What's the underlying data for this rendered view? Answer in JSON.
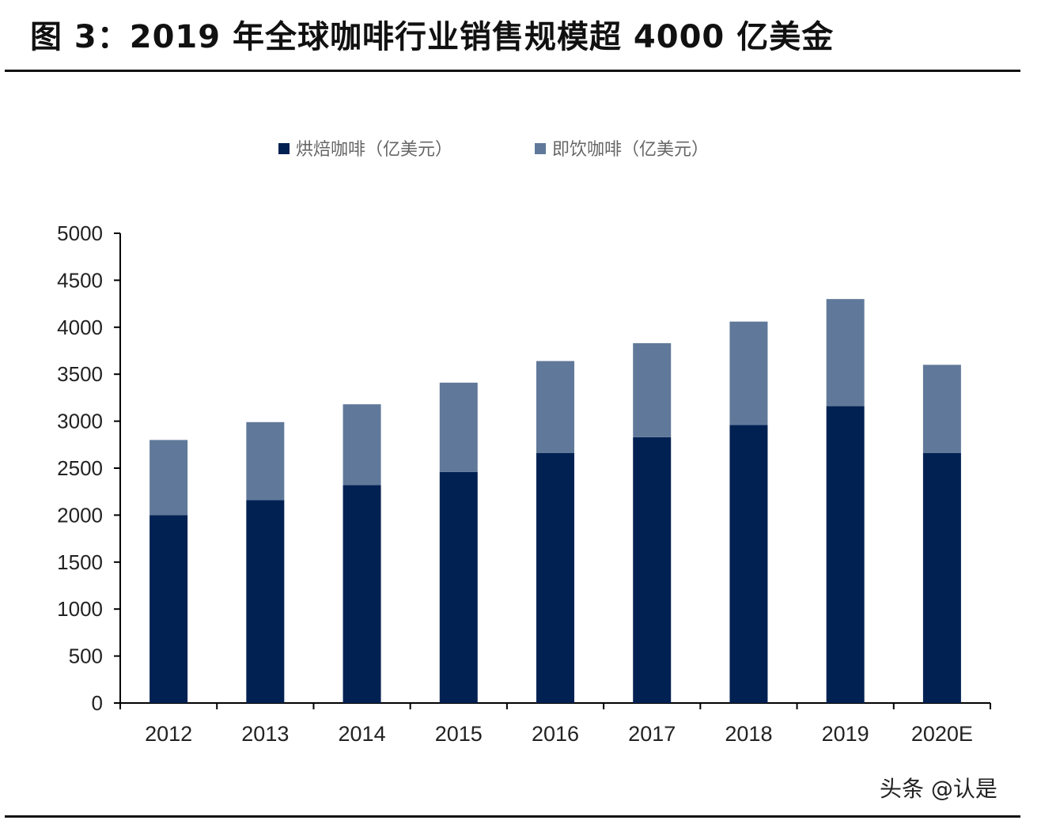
{
  "title": "图 3：2019 年全球咖啡行业销售规模超 4000 亿美金",
  "watermark": "头条 @认是",
  "chart_data": {
    "type": "bar",
    "stacked": true,
    "categories": [
      "2012",
      "2013",
      "2014",
      "2015",
      "2016",
      "2017",
      "2018",
      "2019",
      "2020E"
    ],
    "series": [
      {
        "name": "烘焙咖啡（亿美元）",
        "color": "#002152",
        "values": [
          2000,
          2160,
          2320,
          2460,
          2660,
          2830,
          2960,
          3160,
          2660
        ]
      },
      {
        "name": "即饮咖啡（亿美元）",
        "color": "#60799a",
        "values": [
          800,
          830,
          860,
          950,
          980,
          1000,
          1100,
          1140,
          940
        ]
      }
    ],
    "ylim": [
      0,
      5000
    ],
    "yticks": [
      0,
      500,
      1000,
      1500,
      2000,
      2500,
      3000,
      3500,
      4000,
      4500,
      5000
    ],
    "grid": false,
    "legend": "top-center"
  }
}
